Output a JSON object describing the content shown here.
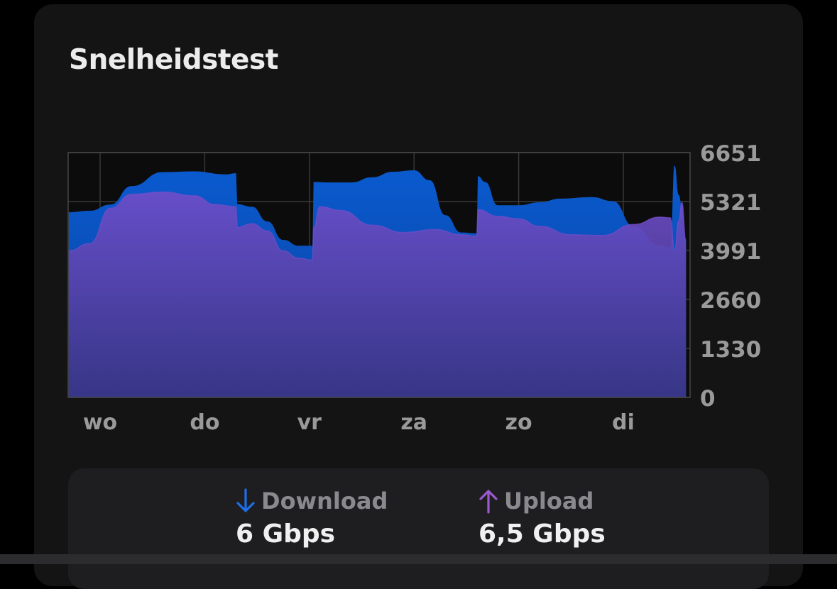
{
  "card": {
    "title": "Snelheidstest"
  },
  "colors": {
    "background": "#000000",
    "card": "#141414",
    "download": "#0a55c8",
    "upload": "#8e44ad",
    "upload_fill": "#6a4fc4",
    "grid": "#3a3a3a",
    "tick_text": "#9a9a9a"
  },
  "chart_data": {
    "type": "area",
    "x_ticks": [
      "wo",
      "do",
      "vr",
      "za",
      "zo",
      "di"
    ],
    "y_ticks": [
      "6651",
      "5321",
      "3991",
      "2660",
      "1330",
      "0"
    ],
    "ylim": [
      0,
      6651
    ],
    "grid": true,
    "series": [
      {
        "name": "Download",
        "color": "#0a55c8",
        "points": [
          {
            "t": -0.3,
            "v": 5030
          },
          {
            "t": -0.1,
            "v": 5070
          },
          {
            "t": 0.1,
            "v": 5240
          },
          {
            "t": 0.3,
            "v": 5740
          },
          {
            "t": 0.6,
            "v": 6120
          },
          {
            "t": 0.9,
            "v": 6140
          },
          {
            "t": 1.2,
            "v": 6060
          },
          {
            "t": 1.3,
            "v": 6090
          },
          {
            "t": 1.31,
            "v": 5250
          },
          {
            "t": 1.45,
            "v": 5180
          },
          {
            "t": 1.6,
            "v": 4780
          },
          {
            "t": 1.75,
            "v": 4280
          },
          {
            "t": 1.9,
            "v": 4120
          },
          {
            "t": 2.03,
            "v": 4120
          },
          {
            "t": 2.04,
            "v": 5850
          },
          {
            "t": 2.2,
            "v": 5840
          },
          {
            "t": 2.4,
            "v": 5840
          },
          {
            "t": 2.6,
            "v": 5980
          },
          {
            "t": 2.8,
            "v": 6130
          },
          {
            "t": 3.0,
            "v": 6170
          },
          {
            "t": 3.15,
            "v": 5900
          },
          {
            "t": 3.3,
            "v": 4950
          },
          {
            "t": 3.45,
            "v": 4480
          },
          {
            "t": 3.6,
            "v": 4460
          },
          {
            "t": 3.61,
            "v": 6010
          },
          {
            "t": 3.68,
            "v": 5850
          },
          {
            "t": 3.8,
            "v": 5220
          },
          {
            "t": 4.0,
            "v": 5220
          },
          {
            "t": 4.2,
            "v": 5300
          },
          {
            "t": 4.4,
            "v": 5400
          },
          {
            "t": 4.7,
            "v": 5440
          },
          {
            "t": 4.9,
            "v": 5330
          },
          {
            "t": 5.1,
            "v": 4650
          },
          {
            "t": 5.35,
            "v": 4130
          },
          {
            "t": 5.45,
            "v": 4080
          },
          {
            "t": 5.49,
            "v": 6300
          },
          {
            "t": 5.53,
            "v": 5500
          },
          {
            "t": 5.56,
            "v": 5200
          },
          {
            "t": 5.6,
            "v": 4300
          }
        ]
      },
      {
        "name": "Upload",
        "color": "#6a4fc4",
        "points": [
          {
            "t": -0.3,
            "v": 3980
          },
          {
            "t": -0.1,
            "v": 4180
          },
          {
            "t": 0.1,
            "v": 5140
          },
          {
            "t": 0.3,
            "v": 5520
          },
          {
            "t": 0.6,
            "v": 5580
          },
          {
            "t": 0.9,
            "v": 5480
          },
          {
            "t": 1.1,
            "v": 5240
          },
          {
            "t": 1.3,
            "v": 5180
          },
          {
            "t": 1.31,
            "v": 4620
          },
          {
            "t": 1.45,
            "v": 4720
          },
          {
            "t": 1.6,
            "v": 4520
          },
          {
            "t": 1.75,
            "v": 3980
          },
          {
            "t": 1.9,
            "v": 3780
          },
          {
            "t": 2.03,
            "v": 3730
          },
          {
            "t": 2.04,
            "v": 4600
          },
          {
            "t": 2.1,
            "v": 5180
          },
          {
            "t": 2.3,
            "v": 5080
          },
          {
            "t": 2.6,
            "v": 4680
          },
          {
            "t": 2.9,
            "v": 4480
          },
          {
            "t": 3.2,
            "v": 4560
          },
          {
            "t": 3.45,
            "v": 4420
          },
          {
            "t": 3.6,
            "v": 4380
          },
          {
            "t": 3.61,
            "v": 5100
          },
          {
            "t": 3.8,
            "v": 4920
          },
          {
            "t": 4.0,
            "v": 4850
          },
          {
            "t": 4.2,
            "v": 4650
          },
          {
            "t": 4.5,
            "v": 4420
          },
          {
            "t": 4.8,
            "v": 4400
          },
          {
            "t": 5.1,
            "v": 4700
          },
          {
            "t": 5.35,
            "v": 4900
          },
          {
            "t": 5.45,
            "v": 4880
          },
          {
            "t": 5.49,
            "v": 3980
          },
          {
            "t": 5.53,
            "v": 4800
          },
          {
            "t": 5.56,
            "v": 5300
          },
          {
            "t": 5.6,
            "v": 4200
          }
        ]
      }
    ]
  },
  "stats": {
    "download": {
      "icon": "arrow-down-icon",
      "label": "Download",
      "value": "6 Gbps"
    },
    "upload": {
      "icon": "arrow-up-icon",
      "label": "Upload",
      "value": "6,5 Gbps"
    }
  }
}
